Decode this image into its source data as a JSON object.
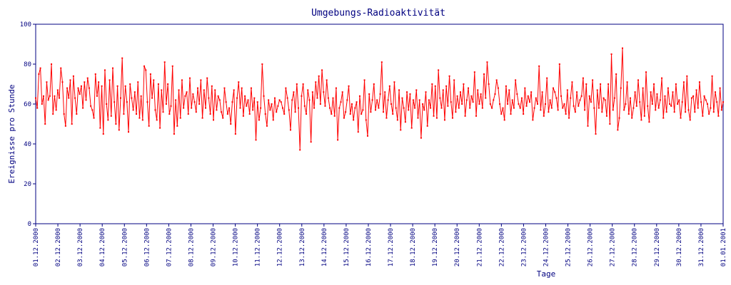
{
  "colors": {
    "axis": "#000080",
    "series": "#ff0000",
    "background": "#ffffff"
  },
  "chart_data": {
    "type": "line",
    "title": "Umgebungs-Radioaktivität",
    "xlabel": "Tage",
    "ylabel": "Ereignisse pro Stunde",
    "ylim": [
      0,
      100
    ],
    "y_ticks": [
      0,
      20,
      40,
      60,
      80,
      100
    ],
    "grid": false,
    "legend": "none",
    "x_tick_labels": [
      "01.12.2000",
      "02.12.2000",
      "03.12.2000",
      "04.12.2000",
      "05.12.2000",
      "06.12.2000",
      "07.12.2000",
      "08.12.2000",
      "09.12.2000",
      "10.12.2000",
      "11.12.2000",
      "12.12.2000",
      "13.12.2000",
      "14.12.2000",
      "15.12.2000",
      "16.12.2000",
      "17.12.2000",
      "18.12.2000",
      "19.12.2000",
      "20.12.2000",
      "21.12.2000",
      "22.12.2000",
      "23.12.2000",
      "24.12.2000",
      "25.12.2000",
      "26.12.2000",
      "27.12.2000",
      "28.12.2000",
      "29.12.2000",
      "30.12.2000",
      "31.12.2000",
      "01.01.2001"
    ],
    "series": [
      {
        "values": [
          63,
          58,
          75,
          78,
          60,
          64,
          50,
          71,
          62,
          64,
          80,
          55,
          64,
          57,
          67,
          63,
          78,
          71,
          55,
          49,
          68,
          63,
          72,
          50,
          74,
          63,
          55,
          68,
          65,
          69,
          58,
          71,
          62,
          73,
          68,
          59,
          57,
          53,
          75,
          64,
          71,
          48,
          69,
          45,
          77,
          60,
          52,
          72,
          54,
          78,
          61,
          50,
          69,
          47,
          63,
          83,
          55,
          69,
          61,
          46,
          70,
          63,
          57,
          66,
          55,
          71,
          53,
          64,
          52,
          79,
          77,
          61,
          49,
          75,
          63,
          72,
          57,
          52,
          70,
          48,
          67,
          56,
          81,
          60,
          70,
          55,
          59,
          79,
          45,
          62,
          49,
          67,
          53,
          72,
          58,
          64,
          66,
          55,
          73,
          58,
          65,
          61,
          56,
          68,
          60,
          72,
          53,
          67,
          58,
          73,
          63,
          55,
          69,
          52,
          67,
          57,
          64,
          62,
          56,
          53,
          68,
          61,
          55,
          58,
          50,
          61,
          67,
          45,
          63,
          71,
          58,
          68,
          54,
          64,
          59,
          62,
          55,
          68,
          57,
          63,
          42,
          61,
          52,
          58,
          80,
          64,
          55,
          49,
          62,
          57,
          60,
          52,
          63,
          56,
          59,
          62,
          61,
          58,
          55,
          68,
          63,
          57,
          47,
          62,
          66,
          56,
          70,
          58,
          37,
          64,
          70,
          59,
          55,
          67,
          62,
          41,
          66,
          58,
          71,
          63,
          74,
          60,
          77,
          66,
          59,
          72,
          63,
          58,
          55,
          63,
          54,
          68,
          42,
          58,
          61,
          66,
          53,
          56,
          62,
          69,
          55,
          60,
          52,
          58,
          61,
          46,
          64,
          55,
          57,
          72,
          52,
          44,
          65,
          56,
          62,
          70,
          57,
          62,
          58,
          65,
          81,
          56,
          66,
          53,
          62,
          69,
          60,
          55,
          71,
          58,
          52,
          67,
          47,
          63,
          58,
          51,
          66,
          57,
          65,
          48,
          62,
          58,
          67,
          53,
          62,
          43,
          60,
          57,
          66,
          49,
          62,
          58,
          70,
          54,
          69,
          53,
          77,
          63,
          58,
          67,
          52,
          69,
          59,
          74,
          61,
          53,
          72,
          56,
          64,
          58,
          66,
          60,
          70,
          54,
          62,
          68,
          58,
          64,
          61,
          76,
          54,
          67,
          60,
          65,
          58,
          75,
          63,
          81,
          70,
          60,
          58,
          62,
          65,
          72,
          68,
          60,
          55,
          58,
          52,
          69,
          60,
          67,
          55,
          62,
          58,
          72,
          65,
          60,
          58,
          63,
          55,
          68,
          59,
          64,
          61,
          66,
          52,
          58,
          63,
          60,
          79,
          57,
          66,
          54,
          60,
          73,
          56,
          62,
          58,
          68,
          66,
          63,
          57,
          80,
          64,
          58,
          60,
          55,
          67,
          53,
          63,
          71,
          59,
          56,
          66,
          59,
          62,
          64,
          73,
          57,
          70,
          49,
          64,
          61,
          72,
          58,
          45,
          67,
          58,
          70,
          56,
          63,
          62,
          54,
          70,
          50,
          85,
          57,
          63,
          75,
          47,
          53,
          68,
          88,
          57,
          60,
          71,
          55,
          63,
          53,
          58,
          66,
          59,
          72,
          61,
          52,
          68,
          54,
          76,
          59,
          51,
          66,
          60,
          70,
          57,
          65,
          58,
          62,
          73,
          53,
          64,
          56,
          68,
          60,
          59,
          66,
          56,
          70,
          60,
          62,
          53,
          61,
          71,
          56,
          74,
          57,
          52,
          63,
          64,
          56,
          67,
          58,
          71,
          61,
          54,
          64,
          62,
          60,
          55,
          58,
          74,
          56,
          66,
          61,
          54,
          68,
          57,
          61
        ]
      }
    ]
  }
}
